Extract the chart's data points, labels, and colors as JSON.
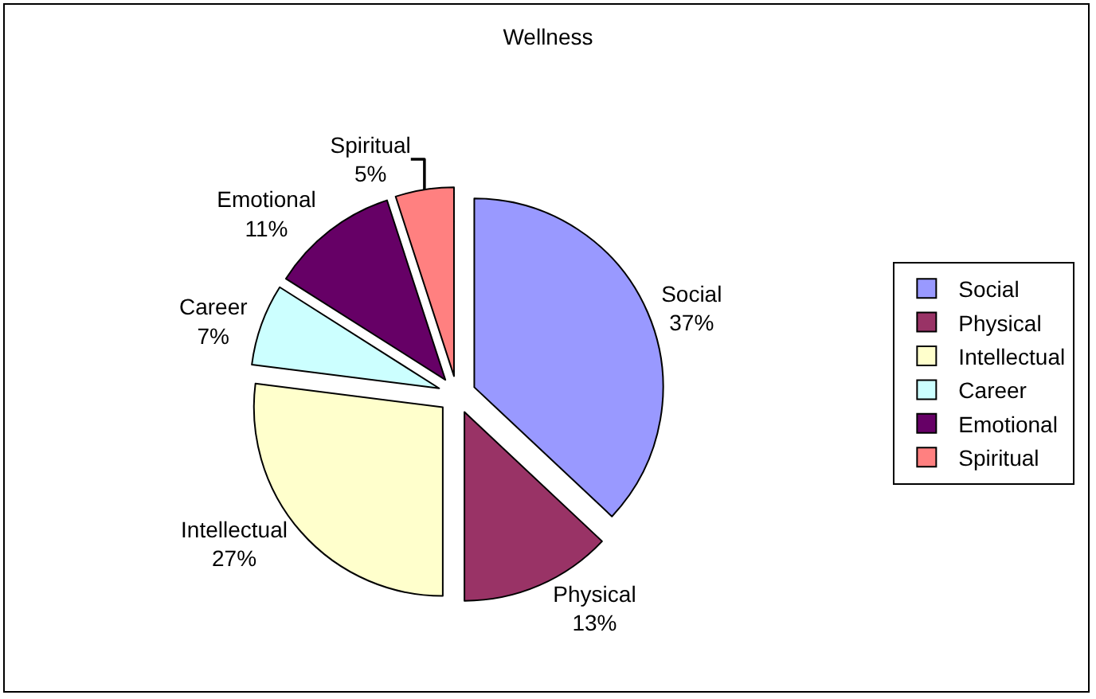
{
  "chart_data": {
    "type": "pie",
    "title": "Wellness",
    "categories": [
      "Social",
      "Physical",
      "Intellectual",
      "Career",
      "Emotional",
      "Spiritual"
    ],
    "values": [
      37,
      13,
      27,
      7,
      11,
      5
    ],
    "value_labels": [
      "37%",
      "13%",
      "27%",
      "7%",
      "11%",
      "5%"
    ],
    "colors": [
      "#9999ff",
      "#993366",
      "#ffffcc",
      "#ccffff",
      "#660066",
      "#ff8080"
    ],
    "legend": "right"
  }
}
